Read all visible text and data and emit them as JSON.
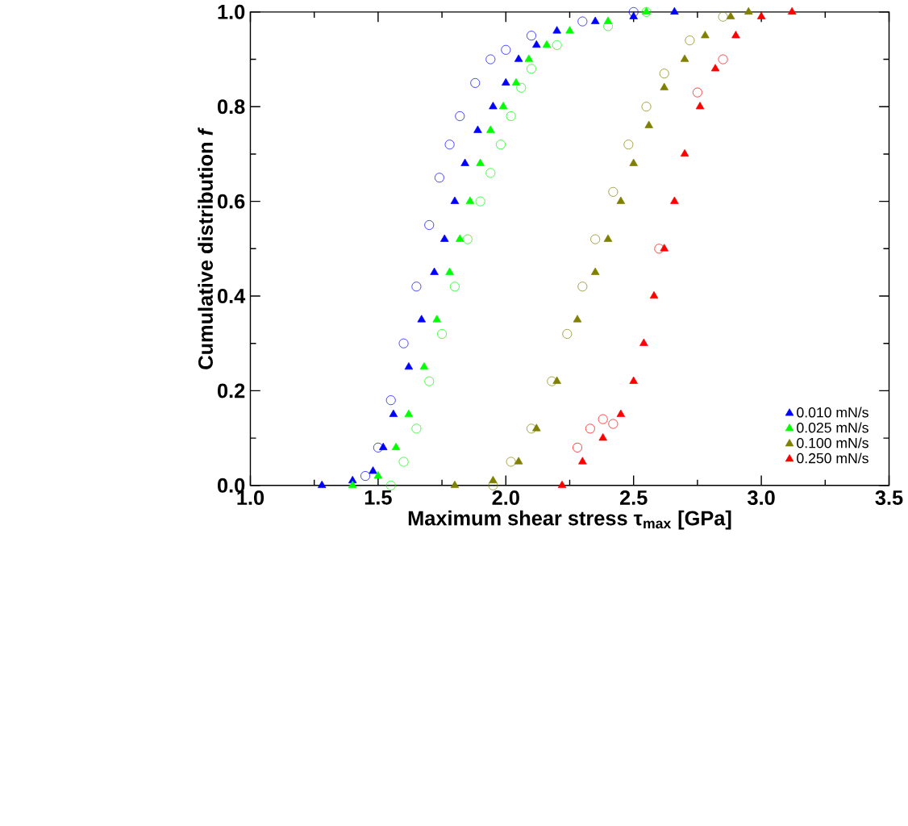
{
  "chart_data": {
    "type": "scatter",
    "xlabel": "Maximum shear stress τ$_{max}$ [GPa]",
    "ylabel": "Cumulative distribution *f*",
    "xlim": [
      1.0,
      3.5
    ],
    "xticks": [
      {
        "value": 1.0,
        "label": "1.0"
      },
      1.5,
      {
        "value": 2.0,
        "label": "2.0"
      },
      2.5,
      {
        "value": 3.0,
        "label": "3.0"
      },
      3.5
    ],
    "ylim": [
      0.0,
      1.0
    ],
    "yticks": [
      {
        "value": 0.0,
        "label": "0.0"
      },
      0.2,
      0.4,
      0.6,
      0.8,
      {
        "value": 1.0,
        "label": "1.0"
      }
    ],
    "legend": "bottom right",
    "grid": false,
    "series": [
      {
        "name": "0.010 mN/s",
        "color": "#0000ff",
        "marker": "triangle",
        "x": [
          1.28,
          1.4,
          1.48,
          1.52,
          1.56,
          1.62,
          1.67,
          1.72,
          1.76,
          1.8,
          1.84,
          1.89,
          1.95,
          2.0,
          2.05,
          2.12,
          2.2,
          2.35,
          2.5,
          2.66
        ],
        "values": [
          0.0,
          0.01,
          0.03,
          0.08,
          0.15,
          0.25,
          0.35,
          0.45,
          0.52,
          0.6,
          0.68,
          0.75,
          0.8,
          0.85,
          0.9,
          0.93,
          0.96,
          0.98,
          0.99,
          1.0
        ]
      },
      {
        "name": "0.025 mN/s",
        "color": "#00ff00",
        "marker": "triangle",
        "x": [
          1.4,
          1.5,
          1.57,
          1.62,
          1.68,
          1.73,
          1.78,
          1.82,
          1.86,
          1.9,
          1.94,
          1.99,
          2.04,
          2.09,
          2.16,
          2.25,
          2.4,
          2.55
        ],
        "values": [
          0.0,
          0.02,
          0.08,
          0.15,
          0.25,
          0.35,
          0.45,
          0.52,
          0.6,
          0.68,
          0.75,
          0.8,
          0.85,
          0.9,
          0.93,
          0.96,
          0.98,
          1.0
        ]
      },
      {
        "name": "0.100 mN/s",
        "color": "#808000",
        "marker": "triangle",
        "x": [
          1.8,
          1.95,
          2.05,
          2.12,
          2.2,
          2.28,
          2.35,
          2.4,
          2.45,
          2.5,
          2.56,
          2.62,
          2.7,
          2.78,
          2.88,
          2.95
        ],
        "values": [
          0.0,
          0.01,
          0.05,
          0.12,
          0.22,
          0.35,
          0.45,
          0.52,
          0.6,
          0.68,
          0.76,
          0.84,
          0.9,
          0.95,
          0.99,
          1.0
        ]
      },
      {
        "name": "0.250 mN/s",
        "color": "#ff0000",
        "marker": "triangle",
        "x": [
          2.22,
          2.3,
          2.38,
          2.45,
          2.5,
          2.54,
          2.58,
          2.62,
          2.66,
          2.7,
          2.76,
          2.82,
          2.9,
          3.0,
          3.12
        ],
        "values": [
          0.0,
          0.05,
          0.1,
          0.15,
          0.22,
          0.3,
          0.4,
          0.5,
          0.6,
          0.7,
          0.8,
          0.88,
          0.95,
          0.99,
          1.0
        ]
      },
      {
        "color": "#0000ff",
        "marker": "circle",
        "x": [
          1.45,
          1.5,
          1.55,
          1.6,
          1.65,
          1.7,
          1.74,
          1.78,
          1.82,
          1.88,
          1.94,
          2.0,
          2.1,
          2.3,
          2.5
        ],
        "values": [
          0.02,
          0.08,
          0.18,
          0.3,
          0.42,
          0.55,
          0.65,
          0.72,
          0.78,
          0.85,
          0.9,
          0.92,
          0.95,
          0.98,
          1.0
        ]
      },
      {
        "color": "#00ff00",
        "marker": "circle",
        "x": [
          1.55,
          1.6,
          1.65,
          1.7,
          1.75,
          1.8,
          1.85,
          1.9,
          1.94,
          1.98,
          2.02,
          2.06,
          2.1,
          2.2,
          2.4,
          2.55
        ],
        "values": [
          0.0,
          0.05,
          0.12,
          0.22,
          0.32,
          0.42,
          0.52,
          0.6,
          0.66,
          0.72,
          0.78,
          0.84,
          0.88,
          0.93,
          0.97,
          1.0
        ]
      },
      {
        "color": "#808000",
        "marker": "circle",
        "x": [
          1.95,
          2.02,
          2.1,
          2.18,
          2.24,
          2.3,
          2.35,
          2.42,
          2.48,
          2.55,
          2.62,
          2.72,
          2.85
        ],
        "values": [
          0.0,
          0.05,
          0.12,
          0.22,
          0.32,
          0.42,
          0.52,
          0.62,
          0.72,
          0.8,
          0.87,
          0.94,
          0.99
        ]
      },
      {
        "color": "#ff0000",
        "marker": "circle",
        "x": [
          2.28,
          2.33,
          2.38,
          2.42,
          2.6,
          2.75,
          2.85
        ],
        "values": [
          0.08,
          0.12,
          0.14,
          0.13,
          0.5,
          0.83,
          0.9
        ]
      }
    ]
  }
}
